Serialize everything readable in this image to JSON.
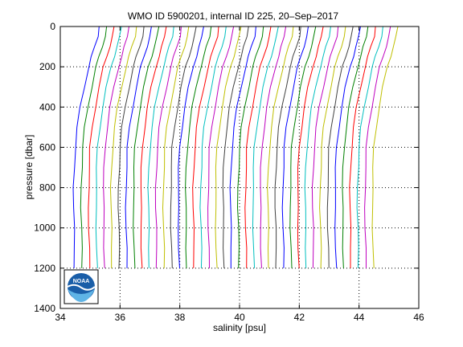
{
  "chart_data": {
    "type": "line",
    "title": "WMO ID 5900201, internal ID 225, 20–Sep–2017",
    "xlabel": "salinity [psu]",
    "ylabel": "pressure [dbar]",
    "xlim": [
      34,
      46
    ],
    "ylim": [
      0,
      1400
    ],
    "y_reversed": true,
    "grid": true,
    "grid_style": "dotted",
    "xticks": [
      34,
      36,
      38,
      40,
      42,
      44,
      46
    ],
    "yticks": [
      0,
      200,
      400,
      600,
      800,
      1000,
      1200,
      1400
    ],
    "xtick_labels": [
      "34",
      "36",
      "38",
      "40",
      "42",
      "44",
      "46"
    ],
    "ytick_labels": [
      "0",
      "200",
      "400",
      "600",
      "800",
      "1000",
      "1200",
      "1400"
    ],
    "profile_count": 41,
    "profile_offset_psu": 0.25,
    "profile_colors": [
      "#0000ff",
      "#008000",
      "#ff0000",
      "#00bfbf",
      "#bf00bf",
      "#bfbf00",
      "#404040"
    ],
    "profile_shape": {
      "pressure": [
        0,
        50,
        100,
        150,
        200,
        300,
        400,
        500,
        600,
        700,
        800,
        900,
        1000,
        1100,
        1200
      ],
      "salinity_offset": [
        0.85,
        0.8,
        0.7,
        0.6,
        0.5,
        0.35,
        0.22,
        0.12,
        0.05,
        0.02,
        0.0,
        0.0,
        0.01,
        0.02,
        0.03
      ]
    },
    "first_profile_base_psu": 34.45,
    "logo": {
      "name": "noaa-logo",
      "text": "NOAA"
    }
  }
}
